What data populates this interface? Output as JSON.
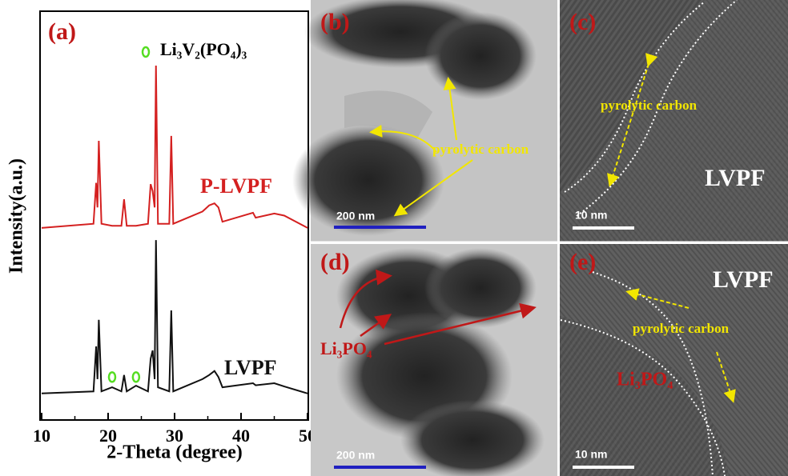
{
  "chart_data": {
    "type": "line",
    "panel_label": "(a)",
    "xlabel": "2-Theta (degree)",
    "ylabel": "Intensity(a.u.)",
    "legend_text": "Li₃V₂(PO₄)₃",
    "legend_color": "#55dd22",
    "x": [
      10,
      17.8,
      18.2,
      18.4,
      18.6,
      19,
      20.6,
      22,
      22.4,
      22.8,
      24.2,
      26,
      26.4,
      26.7,
      27,
      27.2,
      27.5,
      29.2,
      29.5,
      29.8,
      34.2,
      35.2,
      36,
      36.6,
      37.2,
      41.8,
      42.2,
      45,
      46.5,
      50
    ],
    "series": [
      {
        "name": "P-LVPF",
        "color": "#d42020",
        "values": [
          47,
          48,
          58,
          52,
          68.3,
          48,
          47.5,
          47.5,
          54,
          47.5,
          47.5,
          48,
          57.7,
          56,
          52,
          86.7,
          48,
          48,
          69.5,
          48,
          51,
          52.5,
          53,
          52,
          48.5,
          50.7,
          49.5,
          50.5,
          50,
          47
        ]
      },
      {
        "name": "LVPF",
        "color": "#111111",
        "values": [
          6.5,
          7,
          18,
          10,
          24.5,
          7,
          8,
          7,
          11,
          7,
          8.4,
          7,
          15,
          17,
          10,
          44,
          8,
          7,
          26.8,
          7,
          10,
          11,
          12,
          10.5,
          8,
          9,
          8.5,
          9,
          8.2,
          6.5
        ]
      }
    ],
    "impurity_marks": [
      {
        "x": 20.6,
        "y": 10.5
      },
      {
        "x": 24.2,
        "y": 10.5
      }
    ],
    "xlim": [
      10,
      50
    ],
    "ylim": [
      0,
      100
    ],
    "xticks": [
      10,
      20,
      30,
      40,
      50
    ]
  },
  "panels": [
    {
      "label": "(b)",
      "annotation": "pyrolytic carbon",
      "scale_bar": "200 nm"
    },
    {
      "label": "(c)",
      "annotation": "pyrolytic carbon",
      "phase": "LVPF",
      "scale_bar": "10 nm"
    },
    {
      "label": "(d)",
      "annotation": "Li₃PO₄",
      "scale_bar": "200 nm"
    },
    {
      "label": "(e)",
      "phase": "LVPF",
      "annotation": "pyrolytic carbon",
      "phase2": "Li₃PO₄",
      "scale_bar": "10 nm"
    }
  ]
}
